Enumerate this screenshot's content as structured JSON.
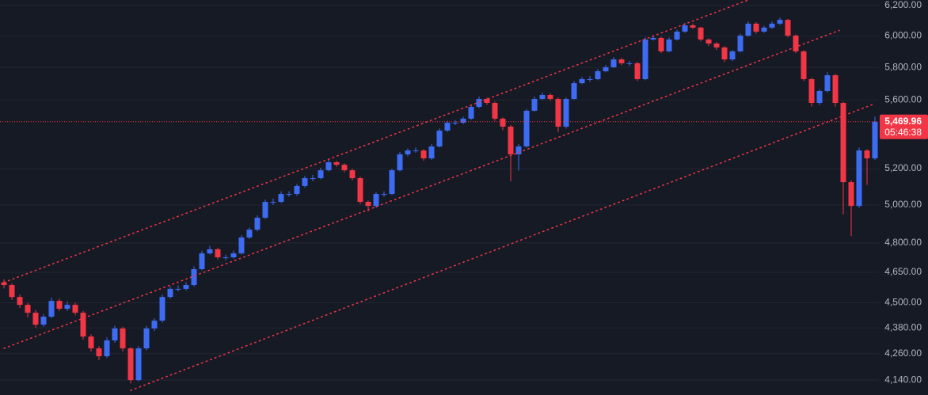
{
  "chart_data": {
    "type": "candlestick",
    "log_scale": true,
    "grid": true,
    "up_color": "#3d6cf2",
    "down_color": "#f23645",
    "ylim": [
      4074,
      6237
    ],
    "yticks": [
      {
        "value": 4140,
        "label": "4,140.00"
      },
      {
        "value": 4260,
        "label": "4,260.00"
      },
      {
        "value": 4380,
        "label": "4,380.00"
      },
      {
        "value": 4500,
        "label": "4,500.00"
      },
      {
        "value": 4650,
        "label": "4,650.00"
      },
      {
        "value": 4800,
        "label": "4,800.00"
      },
      {
        "value": 5000,
        "label": "5,000.00"
      },
      {
        "value": 5200,
        "label": "5,200.00"
      },
      {
        "value": 5600,
        "label": "5,600.00"
      },
      {
        "value": 5800,
        "label": "5,800.00"
      },
      {
        "value": 6000,
        "label": "6,000.00"
      },
      {
        "value": 6200,
        "label": "6,200.00"
      }
    ],
    "open": [
      4600,
      4587,
      4528,
      4490,
      4452,
      4395,
      4433,
      4509,
      4471,
      4490,
      4452,
      4339,
      4284,
      4248,
      4321,
      4377,
      4284,
      4140,
      4284,
      4377,
      4414,
      4528,
      4568,
      4568,
      4587,
      4666,
      4746,
      4767,
      4726,
      4726,
      4746,
      4828,
      4869,
      4932,
      5017,
      5017,
      5060,
      5060,
      5104,
      5147,
      5147,
      5191,
      5236,
      5222,
      5191,
      5147,
      5017,
      4995,
      5060,
      5060,
      5191,
      5281,
      5303,
      5303,
      5258,
      5326,
      5418,
      5464,
      5464,
      5488,
      5558,
      5606,
      5582,
      5488,
      5441,
      5281,
      5326,
      5535,
      5606,
      5630,
      5606,
      5441,
      5606,
      5702,
      5727,
      5727,
      5776,
      5801,
      5850,
      5826,
      5826,
      5727,
      5977,
      5987,
      5901,
      5977,
      6028,
      6069,
      6054,
      5977,
      5951,
      5926,
      5850,
      5901,
      6002,
      6080,
      6028,
      6054,
      6080,
      6105,
      6002,
      5901,
      5727,
      5582,
      5654,
      5751,
      5582,
      5125,
      4995,
      5303,
      5258
    ],
    "high": [
      4615,
      4595,
      4540,
      4500,
      4465,
      4445,
      4525,
      4520,
      4505,
      4500,
      4460,
      4350,
      4295,
      4335,
      4390,
      4385,
      4290,
      4295,
      4390,
      4425,
      4540,
      4580,
      4585,
      4600,
      4680,
      4760,
      4785,
      4775,
      4740,
      4760,
      4840,
      4880,
      4945,
      5030,
      5035,
      5075,
      5075,
      5115,
      5160,
      5165,
      5205,
      5250,
      5245,
      5230,
      5200,
      5155,
      5025,
      5070,
      5075,
      5200,
      5295,
      5315,
      5320,
      5310,
      5340,
      5430,
      5475,
      5480,
      5500,
      5570,
      5620,
      5615,
      5590,
      5495,
      5450,
      5340,
      5545,
      5620,
      5645,
      5640,
      5615,
      5615,
      5715,
      5740,
      5745,
      5790,
      5815,
      5865,
      5860,
      5840,
      5835,
      5990,
      6005,
      5995,
      5990,
      6040,
      6085,
      6080,
      6060,
      5985,
      5960,
      5935,
      5910,
      6015,
      6095,
      6090,
      6065,
      6095,
      6120,
      6110,
      6010,
      5910,
      5735,
      5665,
      5770,
      5760,
      5590,
      5135,
      5320,
      5310,
      5500
    ],
    "low": [
      4570,
      4515,
      4475,
      4430,
      4380,
      4385,
      4425,
      4460,
      4460,
      4440,
      4325,
      4270,
      4230,
      4240,
      4310,
      4270,
      4125,
      4135,
      4275,
      4365,
      4405,
      4520,
      4555,
      4560,
      4580,
      4660,
      4740,
      4715,
      4710,
      4720,
      4740,
      4820,
      4860,
      4925,
      5000,
      5010,
      5045,
      5050,
      5095,
      5130,
      5140,
      5185,
      5210,
      5180,
      5135,
      5005,
      4965,
      4985,
      5045,
      5055,
      5185,
      5270,
      5290,
      5245,
      5250,
      5320,
      5410,
      5450,
      5455,
      5480,
      5550,
      5570,
      5475,
      5420,
      5130,
      5190,
      5320,
      5530,
      5600,
      5595,
      5410,
      5430,
      5600,
      5695,
      5710,
      5720,
      5770,
      5795,
      5815,
      5810,
      5715,
      5720,
      5970,
      5890,
      5895,
      5970,
      6020,
      6045,
      5965,
      5935,
      5910,
      5835,
      5840,
      5895,
      5995,
      6015,
      6020,
      6045,
      6070,
      5990,
      5890,
      5715,
      5560,
      5570,
      5645,
      5560,
      4950,
      4835,
      4985,
      5110,
      5250
    ],
    "close": [
      4587,
      4528,
      4490,
      4452,
      4395,
      4433,
      4509,
      4471,
      4490,
      4452,
      4339,
      4284,
      4248,
      4321,
      4377,
      4284,
      4140,
      4284,
      4377,
      4414,
      4528,
      4568,
      4568,
      4587,
      4666,
      4746,
      4767,
      4726,
      4726,
      4746,
      4828,
      4869,
      4932,
      5017,
      5017,
      5060,
      5060,
      5104,
      5147,
      5147,
      5191,
      5236,
      5222,
      5191,
      5147,
      5017,
      4995,
      5060,
      5060,
      5191,
      5281,
      5303,
      5303,
      5258,
      5326,
      5418,
      5464,
      5464,
      5488,
      5558,
      5606,
      5582,
      5488,
      5441,
      5281,
      5326,
      5535,
      5606,
      5630,
      5606,
      5441,
      5606,
      5702,
      5727,
      5727,
      5776,
      5801,
      5850,
      5826,
      5826,
      5727,
      5977,
      5987,
      5901,
      5977,
      6028,
      6069,
      6054,
      5977,
      5951,
      5926,
      5850,
      5901,
      6002,
      6080,
      6028,
      6054,
      6080,
      6105,
      6002,
      5901,
      5727,
      5582,
      5654,
      5751,
      5582,
      5125,
      4995,
      5303,
      5258,
      5469.96
    ],
    "trendlines": [
      {
        "x": [
          0,
          94
        ],
        "y": [
          4600,
          6237
        ],
        "color": "#f23645"
      },
      {
        "x": [
          0,
          105.5
        ],
        "y": [
          4284,
          6036
        ],
        "color": "#f23645"
      },
      {
        "x": [
          16,
          110
        ],
        "y": [
          4094,
          5578
        ],
        "color": "#f23645"
      }
    ],
    "last_price": {
      "value": 5469.96,
      "label": "5,469.96"
    },
    "countdown": "05:46:38"
  }
}
